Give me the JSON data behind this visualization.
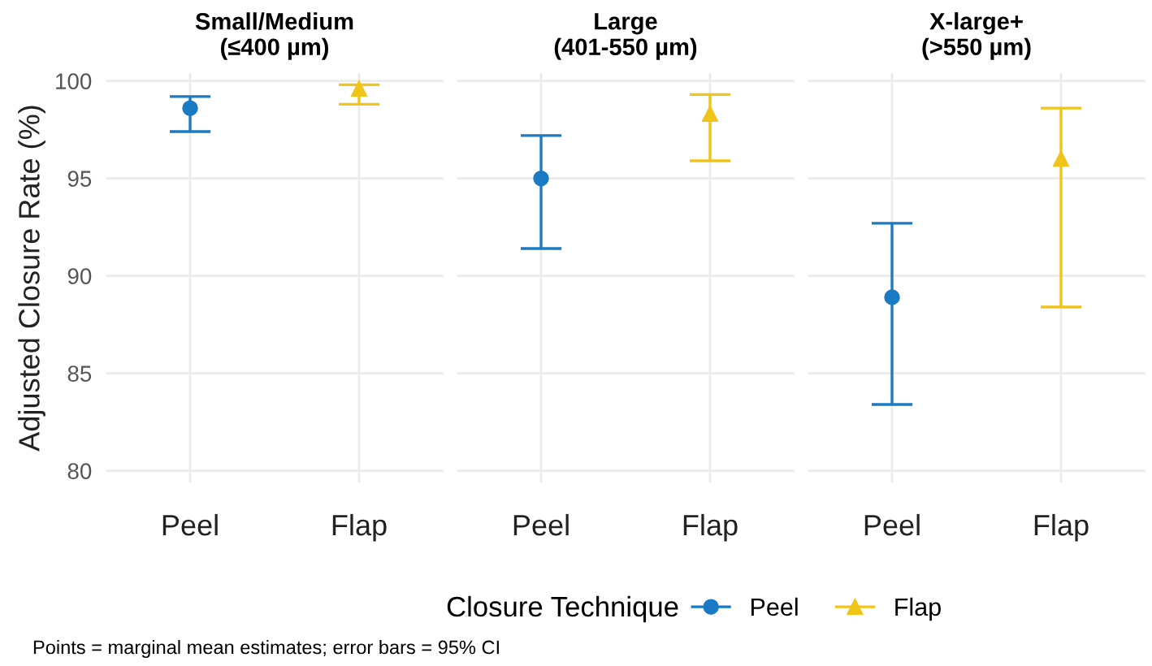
{
  "chart_data": [
    {
      "type": "scatter",
      "title": "Small/Medium\n(≤400 µm)",
      "ylabel": "Adjusted Closure Rate (%)",
      "categories": [
        "Peel",
        "Flap"
      ],
      "ylim": [
        79.4,
        100.4
      ],
      "yticks": [
        80,
        85,
        90,
        95,
        100
      ],
      "grid": true,
      "legend": "bottom",
      "legend_title": "Closure Technique",
      "annotations": [
        "Points = marginal mean estimates; error bars = 95% CI"
      ],
      "series": [
        {
          "name": "Peel",
          "color": "#1a7bc4",
          "marker": "circle",
          "values": [
            98.6,
            null
          ],
          "errors": [
            [
              97.4,
              99.2
            ],
            null
          ]
        },
        {
          "name": "Flap",
          "color": "#f0c419",
          "marker": "triangle",
          "values": [
            null,
            99.6
          ],
          "errors": [
            null,
            [
              98.8,
              99.8
            ]
          ]
        }
      ]
    },
    {
      "type": "scatter",
      "title": "Large\n(401-550 µm)",
      "categories": [
        "Peel",
        "Flap"
      ],
      "ylim": [
        79.4,
        100.4
      ],
      "yticks": [
        80,
        85,
        90,
        95,
        100
      ],
      "grid": true,
      "tick_labels": "x",
      "series": [
        {
          "color": "#1a7bc4",
          "marker": "circle",
          "values": [
            95.0,
            null
          ],
          "errors": [
            [
              91.4,
              97.2
            ],
            null
          ]
        },
        {
          "color": "#f0c419",
          "marker": "triangle",
          "values": [
            null,
            98.3
          ],
          "errors": [
            null,
            [
              95.9,
              99.3
            ]
          ]
        }
      ]
    },
    {
      "type": "scatter",
      "title": "X-large+\n(>550 µm)",
      "categories": [
        "Peel",
        "Flap"
      ],
      "ylim": [
        79.4,
        100.4
      ],
      "yticks": [
        80,
        85,
        90,
        95,
        100
      ],
      "grid": true,
      "tick_labels": "x",
      "series": [
        {
          "color": "#1a7bc4",
          "marker": "circle",
          "values": [
            88.9,
            null
          ],
          "errors": [
            [
              83.4,
              92.7
            ],
            null
          ]
        },
        {
          "color": "#f0c419",
          "marker": "triangle",
          "values": [
            null,
            96.0
          ],
          "errors": [
            null,
            [
              88.4,
              98.6
            ]
          ]
        }
      ]
    }
  ]
}
